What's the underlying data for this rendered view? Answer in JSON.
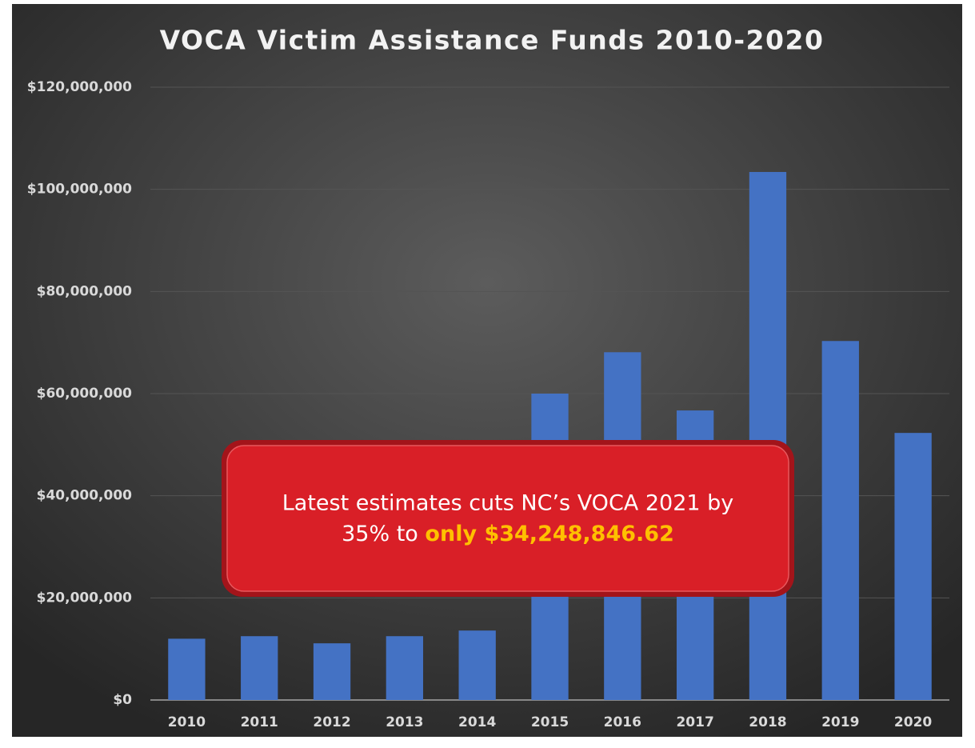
{
  "chart_data": {
    "type": "bar",
    "title": "VOCA Victim Assistance Funds 2010-2020",
    "categories": [
      "2010",
      "2011",
      "2012",
      "2013",
      "2014",
      "2015",
      "2016",
      "2017",
      "2018",
      "2019",
      "2020"
    ],
    "values": [
      12000000,
      12500000,
      11100000,
      12500000,
      13600000,
      60000000,
      68100000,
      56700000,
      103400000,
      70300000,
      52300000
    ],
    "color": "#4472c4",
    "ylim": [
      0,
      120000000
    ],
    "yticks": [
      {
        "value": 0,
        "label": "$0"
      },
      {
        "value": 20000000,
        "label": "$20,000,000"
      },
      {
        "value": 40000000,
        "label": "$40,000,000"
      },
      {
        "value": 60000000,
        "label": "$60,000,000"
      },
      {
        "value": 80000000,
        "label": "$80,000,000"
      },
      {
        "value": 100000000,
        "label": "$100,000,000"
      },
      {
        "value": 120000000,
        "label": "$120,000,000"
      }
    ],
    "grid": true,
    "annotation": {
      "line1": "Latest estimates cuts NC’s VOCA 2021 by",
      "line2": "35% to ",
      "highlight": "only $34,248,846.62"
    }
  }
}
